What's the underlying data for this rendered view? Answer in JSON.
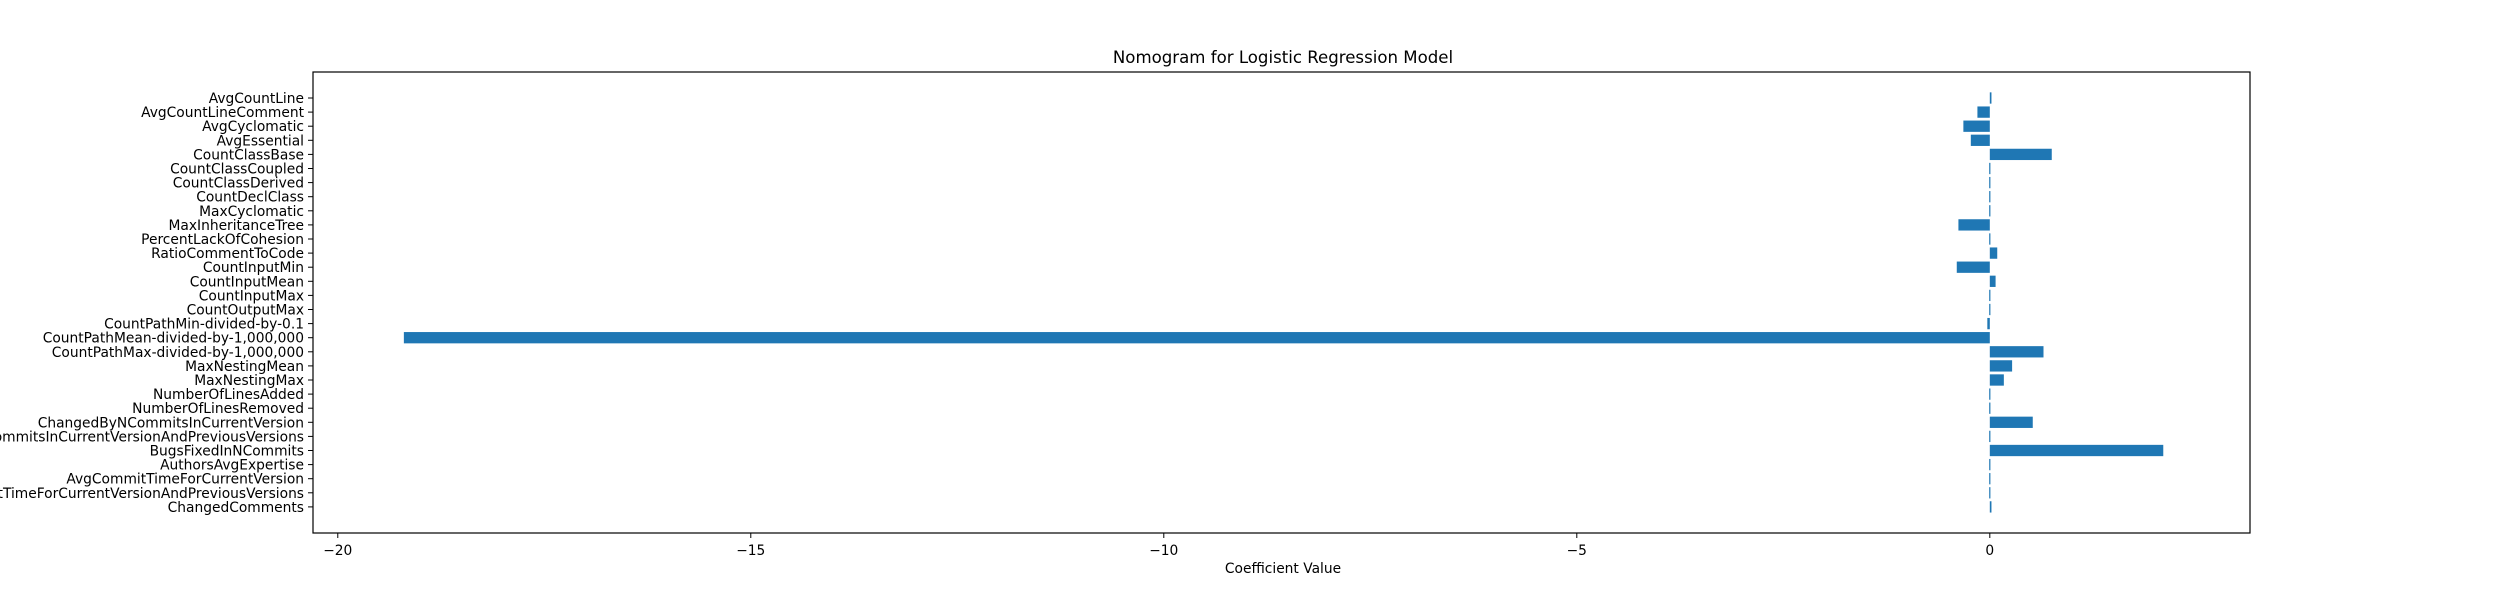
{
  "chart_data": {
    "type": "bar",
    "orientation": "horizontal",
    "title": "Nomogram for Logistic Regression Model",
    "xlabel": "Coefficient Value",
    "ylabel": "",
    "xlim": [
      -20.3,
      3.15
    ],
    "xticks": [
      -20,
      -15,
      -10,
      -5,
      0
    ],
    "xtick_labels": [
      "−20",
      "−15",
      "−10",
      "−5",
      "0"
    ],
    "grid": false,
    "color": "#1f77b4",
    "categories": [
      "AvgCountLine",
      "AvgCountLineComment",
      "AvgCyclomatic",
      "AvgEssential",
      "CountClassBase",
      "CountClassCoupled",
      "CountClassDerived",
      "CountDeclClass",
      "MaxCyclomatic",
      "MaxInheritanceTree",
      "PercentLackOfCohesion",
      "RatioCommentToCode",
      "CountInputMin",
      "CountInputMean",
      "CountInputMax",
      "CountOutputMax",
      "CountPathMin-divided-by-0.1",
      "CountPathMean-divided-by-1,000,000",
      "CountPathMax-divided-by-1,000,000",
      "MaxNestingMean",
      "MaxNestingMax",
      "NumberOfLinesAdded",
      "NumberOfLinesRemoved",
      "ChangedByNCommitsInCurrentVersion",
      "ChangedByNCommitsInCurrentVersionAndPreviousVersions",
      "BugsFixedInNCommits",
      "AuthorsAvgExpertise",
      "AvgCommitTimeForCurrentVersion",
      "AvgCommitTimeForCurrentVersionAndPreviousVersions",
      "ChangedComments"
    ],
    "values": [
      0.02,
      -0.15,
      -0.32,
      -0.23,
      0.75,
      0.0,
      0.01,
      0.0,
      0.01,
      -0.38,
      0.0,
      0.09,
      -0.4,
      0.07,
      0.0,
      0.0,
      -0.03,
      -19.2,
      0.65,
      0.27,
      0.17,
      0.0,
      -0.01,
      0.52,
      0.0,
      2.1,
      0.0,
      -0.01,
      0.0,
      0.02
    ]
  }
}
